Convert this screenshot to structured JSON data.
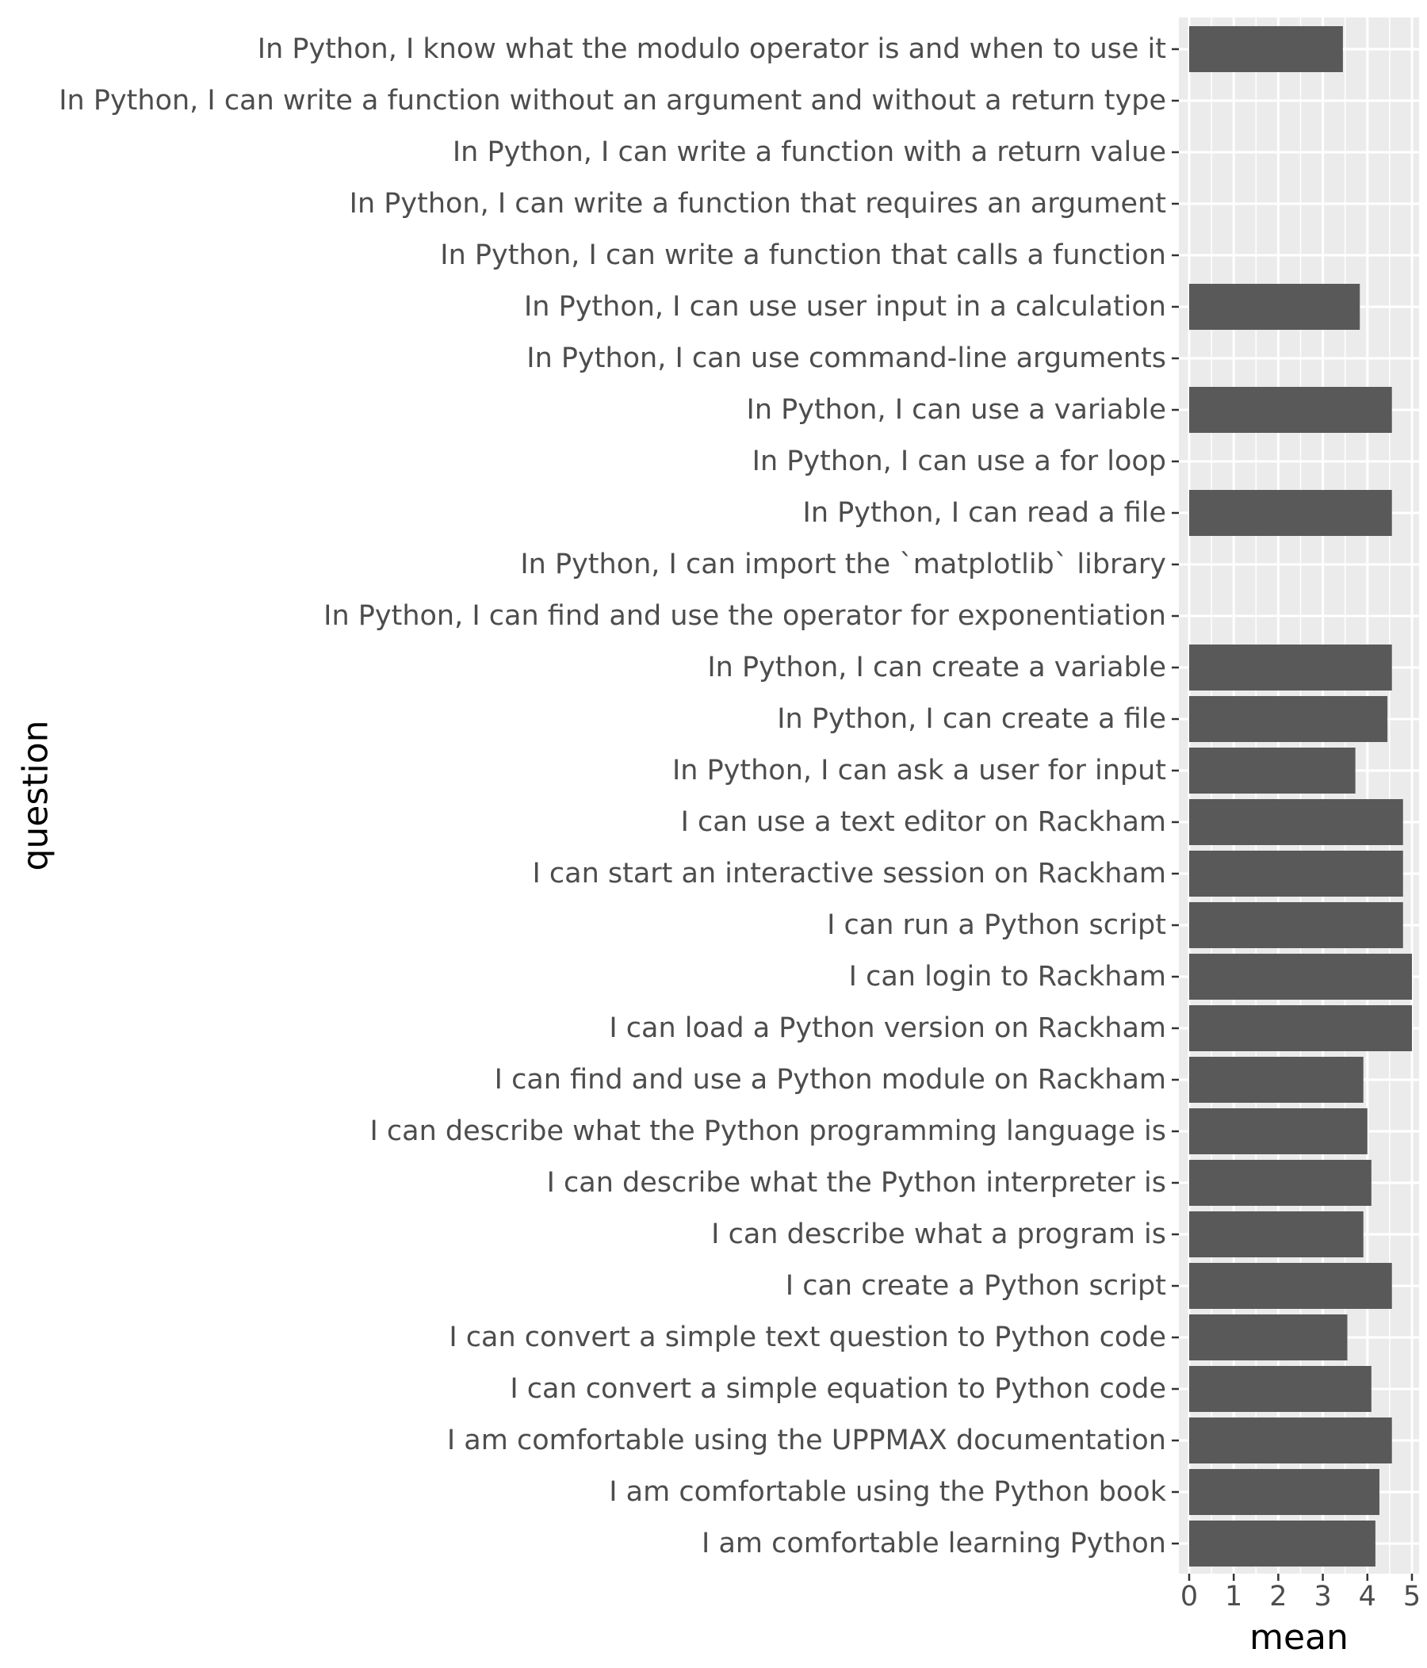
{
  "chart_data": {
    "type": "bar",
    "orientation": "horizontal",
    "xlabel": "mean",
    "ylabel": "question",
    "xlim": [
      0,
      5
    ],
    "x_ticks": [
      "0",
      "1",
      "2",
      "3",
      "4",
      "5"
    ],
    "grid": true,
    "colors": {
      "bar": "#595959",
      "panel_background": "#ebebeb",
      "grid": "#ffffff",
      "tick_label": "#4d4d4d",
      "axis_title": "#000000"
    },
    "categories": [
      "In Python, I know what the modulo operator is and when to use it",
      "In Python, I can write a function without an argument and without a return type",
      "In Python, I can write a function with a return value",
      "In Python, I can write a function that requires an argument",
      "In Python, I can write a function that calls a function",
      "In Python, I can use user input in a calculation",
      "In Python, I can use command-line arguments",
      "In Python, I can use a variable",
      "In Python, I can use a for loop",
      "In Python, I can read a file",
      "In Python, I can import the `matplotlib` library",
      "In Python, I can find and use the operator for exponentiation",
      "In Python, I can create a variable",
      "In Python, I can create a file",
      "In Python, I can ask a user for input",
      "I can use a text editor on Rackham",
      "I can start an interactive session on Rackham",
      "I can run a Python script",
      "I can login to Rackham",
      "I can load a Python version on Rackham",
      "I can find and use a Python module on Rackham",
      "I can describe what the Python programming language is",
      "I can describe what the Python interpreter is",
      "I can describe what a program is",
      "I can create a Python script",
      "I can convert a simple text question to Python code",
      "I can convert a simple equation to Python code",
      "I am comfortable using the UPPMAX documentation",
      "I am comfortable using the Python book",
      "I am comfortable learning Python"
    ],
    "values": [
      3.45,
      null,
      null,
      null,
      null,
      3.83,
      null,
      4.55,
      null,
      4.55,
      null,
      null,
      4.55,
      4.45,
      3.73,
      4.8,
      4.8,
      4.8,
      5.0,
      5.0,
      3.91,
      4.0,
      4.09,
      3.91,
      4.55,
      3.55,
      4.09,
      4.55,
      4.27,
      4.18
    ]
  }
}
